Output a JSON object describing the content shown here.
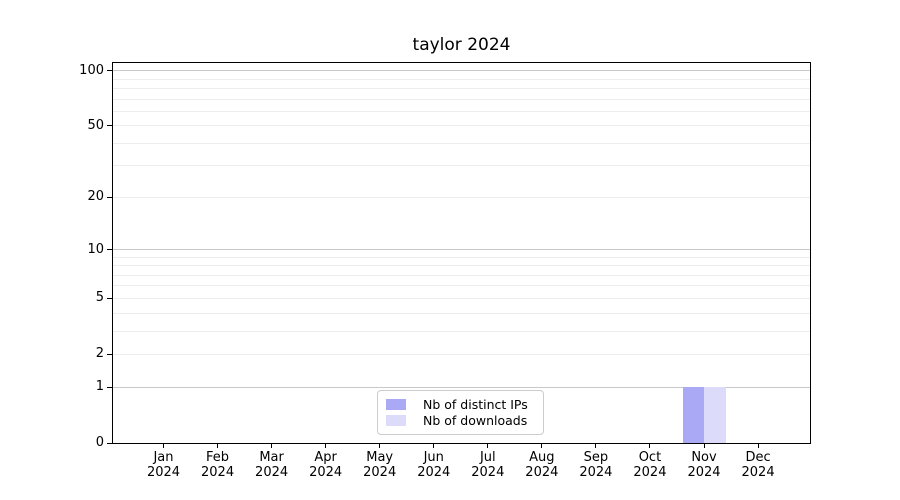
{
  "figure": {
    "title": "taylor 2024"
  },
  "chart_data": {
    "type": "bar",
    "title": "taylor 2024",
    "categories": [
      "Jan 2024",
      "Feb 2024",
      "Mar 2024",
      "Apr 2024",
      "May 2024",
      "Jun 2024",
      "Jul 2024",
      "Aug 2024",
      "Sep 2024",
      "Oct 2024",
      "Nov 2024",
      "Dec 2024"
    ],
    "series": [
      {
        "name": "Nb of distinct IPs",
        "color": "#a9a9f5",
        "values": [
          0,
          0,
          0,
          0,
          0,
          0,
          0,
          0,
          0,
          0,
          1,
          0
        ]
      },
      {
        "name": "Nb of downloads",
        "color": "#dcdcfa",
        "values": [
          0,
          0,
          0,
          0,
          0,
          0,
          0,
          0,
          0,
          0,
          1,
          0
        ]
      }
    ],
    "xlabel": "",
    "ylabel": "",
    "yscale": "log1p",
    "ylim": [
      0,
      110
    ],
    "yticks": [
      0,
      1,
      2,
      5,
      10,
      20,
      50,
      100
    ],
    "grid": {
      "on": true,
      "major_values": [
        1,
        10,
        100
      ],
      "minor_values": [
        2,
        3,
        4,
        5,
        6,
        7,
        8,
        9,
        20,
        30,
        40,
        50,
        60,
        70,
        80,
        90
      ],
      "major_color": "#c9c9c9",
      "minor_color": "#ededed"
    },
    "legend": {
      "position": "lower center inside",
      "entries": [
        "Nb of distinct IPs",
        "Nb of downloads"
      ]
    },
    "axis_color": "#000000",
    "background": "#ffffff"
  }
}
